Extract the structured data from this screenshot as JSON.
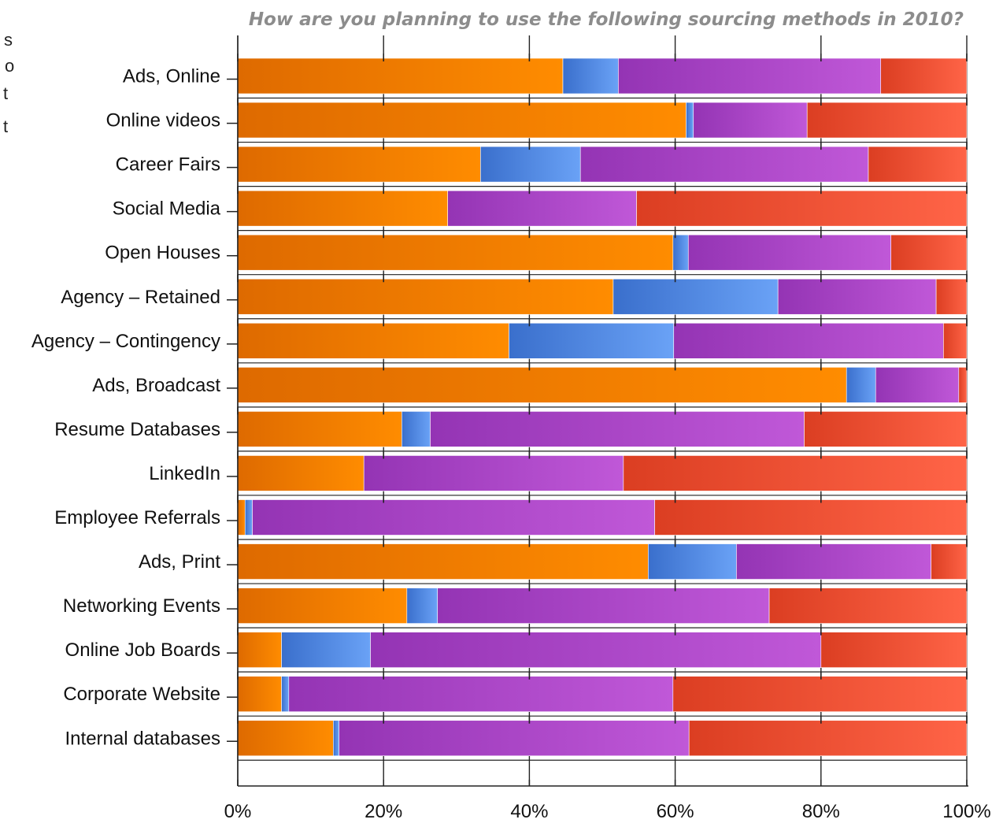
{
  "chart_data": {
    "type": "bar",
    "orientation": "horizontal",
    "stacked": "percent",
    "title": "How are you planning to use the following sourcing methods in 2010?",
    "categories": [
      "Ads, Online",
      "Online videos",
      "Career Fairs",
      "Social Media",
      "Open Houses",
      "Agency – Retained",
      "Agency – Contingency",
      "Ads,  Broadcast",
      "Resume Databases",
      "LinkedIn",
      "Employee Referrals",
      "Ads, Print",
      "Networking Events",
      "Online Job Boards",
      "Corporate Website",
      "Internal databases"
    ],
    "series": [
      {
        "color": "#f58a00",
        "values": [
          44.6,
          61.5,
          33.3,
          28.8,
          59.7,
          51.5,
          37.2,
          83.5,
          22.5,
          17.3,
          1.0,
          56.3,
          23.2,
          6.0,
          6.0,
          13.1
        ]
      },
      {
        "color": "#4f86e0",
        "values": [
          7.6,
          1.0,
          13.7,
          0.0,
          2.1,
          22.6,
          22.6,
          4.0,
          3.9,
          0.0,
          1.0,
          12.1,
          4.2,
          12.2,
          1.0,
          0.8
        ]
      },
      {
        "color": "#a83fc8",
        "values": [
          36.0,
          15.6,
          39.5,
          25.9,
          27.8,
          21.7,
          37.0,
          11.4,
          51.3,
          35.6,
          55.2,
          26.7,
          45.5,
          61.8,
          52.7,
          48.0
        ]
      },
      {
        "color": "#ef5030",
        "values": [
          11.8,
          21.9,
          13.5,
          45.3,
          10.4,
          4.2,
          3.2,
          1.1,
          22.3,
          47.1,
          42.8,
          4.9,
          27.1,
          20.0,
          40.3,
          38.1
        ]
      }
    ],
    "x_ticks": [
      "0%",
      "20%",
      "40%",
      "60%",
      "80%",
      "100%"
    ],
    "xlim": [
      0,
      100
    ],
    "grid": false,
    "legend": "none"
  },
  "clipped_text": [
    "s",
    "o",
    "t",
    "t"
  ]
}
